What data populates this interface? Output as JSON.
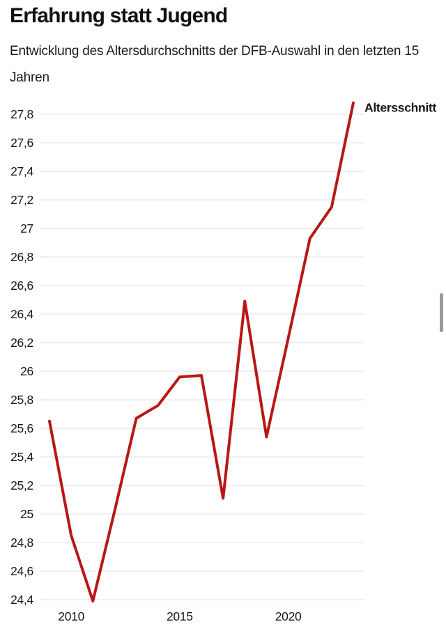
{
  "header": {
    "title": "Erfahrung statt Jugend",
    "subtitle": "Entwicklung des Altersdurchschnitts der DFB-Auswahl in den letzten 15 Jahren"
  },
  "chart_data": {
    "type": "line",
    "title": "Erfahrung statt Jugend",
    "subtitle": "Entwicklung des Altersdurchschnitts der DFB-Auswahl in den letzten 15 Jahren",
    "xlabel": "",
    "ylabel": "",
    "xlim": [
      2009,
      2023
    ],
    "ylim": [
      24.4,
      27.8
    ],
    "x_ticks": [
      2010,
      2015,
      2020
    ],
    "y_ticks": [
      24.4,
      24.6,
      24.8,
      25,
      25.2,
      25.4,
      25.6,
      25.8,
      26,
      26.2,
      26.4,
      26.6,
      26.8,
      27,
      27.2,
      27.4,
      27.6,
      27.8
    ],
    "grid": "horizontal",
    "gridline_color": "#e8e8e8",
    "legend_position": "end-of-line",
    "number_format": "de-comma",
    "series": [
      {
        "name": "Altersschnitt",
        "color": "#b81815",
        "x": [
          2009,
          2010,
          2011,
          2012,
          2013,
          2014,
          2015,
          2016,
          2017,
          2018,
          2019,
          2020,
          2021,
          2022,
          2023
        ],
        "values": [
          25.65,
          24.85,
          24.39,
          25.02,
          25.67,
          25.76,
          25.96,
          25.97,
          25.11,
          26.49,
          25.54,
          26.23,
          26.93,
          27.15,
          27.88
        ]
      }
    ]
  }
}
